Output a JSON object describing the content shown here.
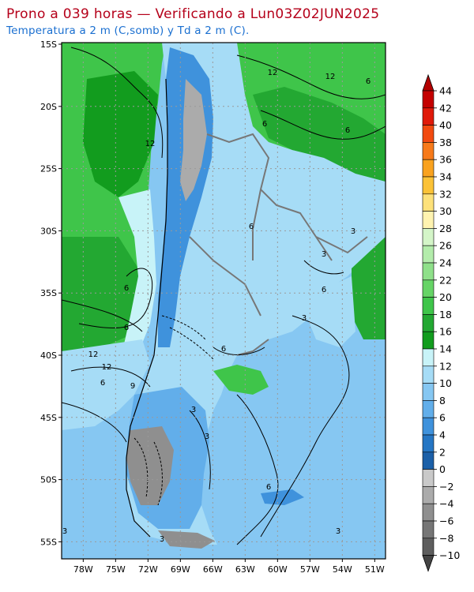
{
  "header": {
    "title": "Prono a 039 horas — Verificando a Lun03Z02JUN2025",
    "subtitle": "Temperatura a 2 m (C,somb) y Td a 2 m (C)."
  },
  "axes": {
    "lat_range": [
      -56,
      -15
    ],
    "lon_range": [
      -80,
      -50
    ],
    "lat_ticks": [
      "15S",
      "20S",
      "25S",
      "30S",
      "35S",
      "40S",
      "45S",
      "50S",
      "55S"
    ],
    "lon_ticks": [
      "78W",
      "75W",
      "72W",
      "69W",
      "66W",
      "63W",
      "60W",
      "57W",
      "54W",
      "51W"
    ],
    "grid": true
  },
  "colorbar": {
    "labels": [
      "44",
      "42",
      "40",
      "38",
      "36",
      "34",
      "32",
      "30",
      "28",
      "26",
      "24",
      "22",
      "20",
      "18",
      "16",
      "14",
      "12",
      "10",
      "8",
      "6",
      "4",
      "2",
      "0",
      "−2",
      "−4",
      "−6",
      "−8",
      "−10"
    ],
    "colors": [
      "#c40000",
      "#e01a0a",
      "#f24a10",
      "#f77a1a",
      "#f9a21f",
      "#fbc237",
      "#fde17a",
      "#fff3b0",
      "#d4f5c8",
      "#b3ecab",
      "#8fe08a",
      "#66d466",
      "#3fc54a",
      "#23a832",
      "#129c1e",
      "#c8f3f8",
      "#a6dcf6",
      "#86c7f2",
      "#62aeea",
      "#3f92dc",
      "#2576c4",
      "#1c60a8",
      "#c9c9c9",
      "#ababab",
      "#8f8f8f",
      "#767676",
      "#5e5e5e"
    ]
  },
  "contour_labels": [
    "12",
    "12",
    "6",
    "6",
    "6",
    "12",
    "6",
    "6",
    "3",
    "6",
    "3",
    "12",
    "6",
    "12",
    "6",
    "9",
    "3",
    "6",
    "3",
    "3",
    "3",
    "3",
    "3",
    "6"
  ]
}
